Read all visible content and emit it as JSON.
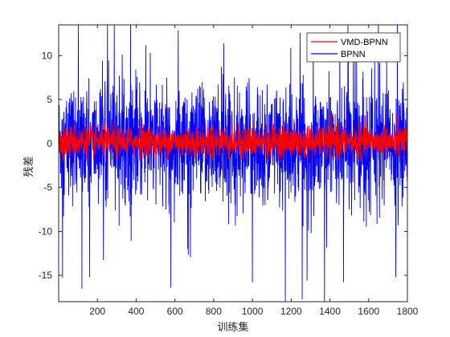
{
  "chart_data": {
    "type": "line",
    "title": "",
    "xlabel": "训练集",
    "ylabel": "残差",
    "xlim": [
      0,
      1800
    ],
    "ylim": [
      -18,
      13.5
    ],
    "x_ticks": [
      "200",
      "400",
      "600",
      "800",
      "1000",
      "1200",
      "1400",
      "1600",
      "1800"
    ],
    "x_tick_values": [
      200,
      400,
      600,
      800,
      1000,
      1200,
      1400,
      1600,
      1800
    ],
    "y_ticks": [
      "10",
      "5",
      "0",
      "-5",
      "-10",
      "-15"
    ],
    "y_tick_values": [
      10,
      5,
      0,
      -5,
      -10,
      -15
    ],
    "grid": false,
    "legend_position": "top-right",
    "series": [
      {
        "name": "VMD-BPNN",
        "color": "#ff0000",
        "n_points": 1800,
        "approx_range": [
          -2,
          4
        ],
        "description_values": {
          "typical_amplitude": 1.5,
          "max": 4,
          "min": -2
        }
      },
      {
        "name": "BPNN",
        "color": "#0000ff",
        "n_points": 1800,
        "approx_range": [
          -18,
          13.5
        ],
        "description_values": {
          "typical_amplitude": 3.5,
          "max": 13.5,
          "min": -18
        }
      }
    ],
    "notable_points": [
      {
        "series": "BPNN",
        "x": 20,
        "y": -15.3
      },
      {
        "series": "BPNN",
        "x": 120,
        "y": -16.5
      },
      {
        "series": "BPNN",
        "x": 160,
        "y": -15.2
      },
      {
        "series": "BPNN",
        "x": 450,
        "y": 11.2
      },
      {
        "series": "BPNN",
        "x": 1000,
        "y": -15.8
      },
      {
        "series": "BPNN",
        "x": 1170,
        "y": -18
      },
      {
        "series": "BPNN",
        "x": 1470,
        "y": -15.8
      },
      {
        "series": "BPNN",
        "x": 1530,
        "y": 11.5
      },
      {
        "series": "BPNN",
        "x": 1650,
        "y": 13.5
      },
      {
        "series": "BPNN",
        "x": 1740,
        "y": -15.2
      }
    ]
  }
}
